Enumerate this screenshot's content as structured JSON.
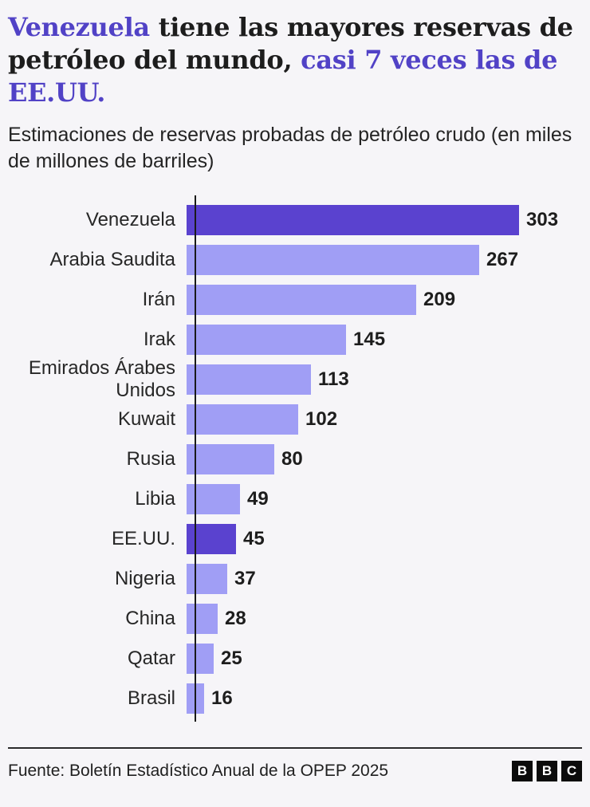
{
  "header": {
    "title_parts": [
      {
        "text": "Venezuela ",
        "accent": true
      },
      {
        "text": "tiene las mayores reservas de petróleo del mundo, ",
        "accent": false
      },
      {
        "text": "casi 7 veces las de EE.UU.",
        "accent": true
      }
    ],
    "subtitle": "Estimaciones de reservas probadas de petróleo crudo (en miles de millones de barriles)"
  },
  "chart_data": {
    "type": "bar",
    "orientation": "horizontal",
    "title": "Venezuela tiene las mayores reservas de petróleo del mundo, casi 7 veces las de EE.UU.",
    "subtitle": "Estimaciones de reservas probadas de petróleo crudo (en miles de millones de barriles)",
    "categories": [
      "Venezuela",
      "Arabia Saudita",
      "Irán",
      "Irak",
      "Emirados Árabes Unidos",
      "Kuwait",
      "Rusia",
      "Libia",
      "EE.UU.",
      "Nigeria",
      "China",
      "Qatar",
      "Brasil"
    ],
    "values": [
      303,
      267,
      209,
      145,
      113,
      102,
      80,
      49,
      45,
      37,
      28,
      25,
      16
    ],
    "highlighted": [
      "Venezuela",
      "EE.UU."
    ],
    "value_labels_shown": true,
    "xlim": [
      0,
      310
    ],
    "grid": false,
    "legend": "none",
    "unit": "miles de millones de barriles"
  },
  "footer": {
    "source": "Fuente: Boletín Estadístico Anual de la OPEP 2025",
    "logo_letters": [
      "B",
      "B",
      "C"
    ]
  },
  "colors": {
    "accent_text": "#5142c6",
    "bar": "#a09ef5",
    "bar_highlight": "#5a42cf",
    "text": "#1d1d1d",
    "background": "#f6f5f8",
    "axis": "#1a1a1a"
  }
}
